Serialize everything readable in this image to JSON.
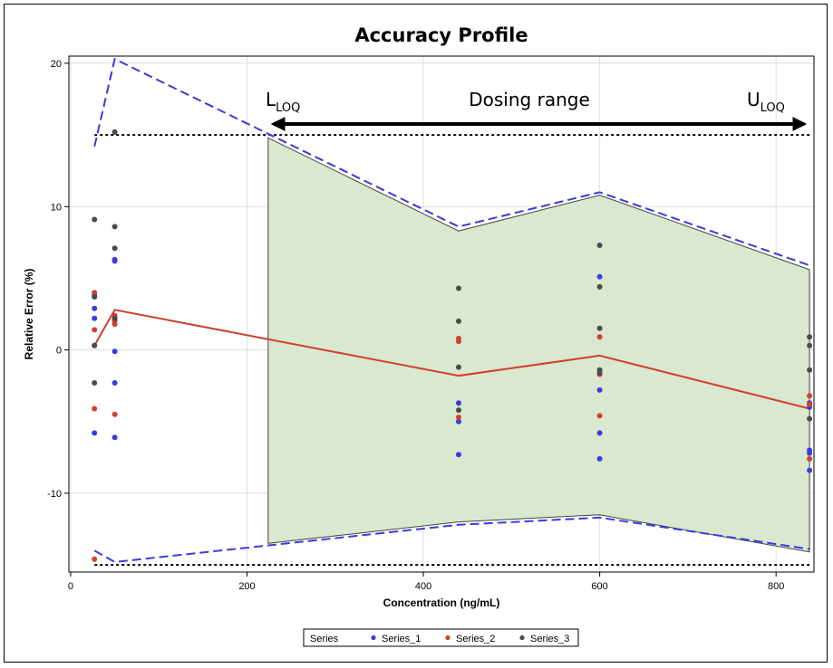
{
  "chart_data": {
    "type": "scatter",
    "title": "Accuracy Profile",
    "xlabel": "Concentration (ng/mL)",
    "ylabel": "Relative Error (%)",
    "xlim": [
      -2,
      843
    ],
    "ylim": [
      -15.5,
      20.5
    ],
    "xticks": [
      0,
      200,
      400,
      600,
      800
    ],
    "yticks": [
      -10,
      0,
      10,
      20
    ],
    "grid": true,
    "legend_title": "Series",
    "legend_position": "bottom",
    "series": [
      {
        "name": "Series_1",
        "color": "#3b3bdc",
        "points": [
          [
            27,
            2.9
          ],
          [
            27,
            2.2
          ],
          [
            27,
            -5.8
          ],
          [
            27,
            3.8
          ],
          [
            50,
            6.3
          ],
          [
            50,
            6.2
          ],
          [
            50,
            -0.1
          ],
          [
            50,
            -2.3
          ],
          [
            50,
            -6.1
          ],
          [
            50,
            2.1
          ],
          [
            440,
            -3.7
          ],
          [
            440,
            -5.0
          ],
          [
            440,
            -7.3
          ],
          [
            600,
            5.1
          ],
          [
            600,
            -2.8
          ],
          [
            600,
            -5.8
          ],
          [
            600,
            -7.6
          ],
          [
            838,
            -7.0
          ],
          [
            838,
            -7.2
          ],
          [
            838,
            -8.4
          ],
          [
            838,
            -3.7
          ],
          [
            838,
            -4.0
          ]
        ]
      },
      {
        "name": "Series_2",
        "color": "#d04030",
        "points": [
          [
            27,
            4.0
          ],
          [
            27,
            1.4
          ],
          [
            27,
            -4.1
          ],
          [
            27,
            -14.6
          ],
          [
            27,
            0.3
          ],
          [
            50,
            2.4
          ],
          [
            50,
            2.0
          ],
          [
            50,
            1.8
          ],
          [
            50,
            -4.5
          ],
          [
            440,
            0.8
          ],
          [
            440,
            0.6
          ],
          [
            440,
            -4.7
          ],
          [
            600,
            0.9
          ],
          [
            600,
            -1.7
          ],
          [
            600,
            -4.6
          ],
          [
            838,
            -3.2
          ],
          [
            838,
            -7.6
          ],
          [
            838,
            -3.8
          ]
        ]
      },
      {
        "name": "Series_3",
        "color": "#4a4a4a",
        "points": [
          [
            27,
            9.1
          ],
          [
            27,
            0.3
          ],
          [
            27,
            -2.3
          ],
          [
            27,
            3.7
          ],
          [
            50,
            15.2
          ],
          [
            50,
            8.6
          ],
          [
            50,
            7.1
          ],
          [
            50,
            2.2
          ],
          [
            440,
            4.3
          ],
          [
            440,
            2.0
          ],
          [
            440,
            -1.2
          ],
          [
            440,
            -4.2
          ],
          [
            600,
            7.3
          ],
          [
            600,
            4.4
          ],
          [
            600,
            1.5
          ],
          [
            600,
            -1.4
          ],
          [
            600,
            -1.6
          ],
          [
            838,
            0.9
          ],
          [
            838,
            0.3
          ],
          [
            838,
            -1.4
          ],
          [
            838,
            -4.8
          ]
        ]
      }
    ],
    "lines": {
      "mean_error": {
        "color": "#d04030",
        "x": [
          27,
          50,
          440,
          600,
          838
        ],
        "y": [
          0.3,
          2.8,
          -1.8,
          -0.4,
          -4.1
        ]
      },
      "upper_tolerance": {
        "color": "#3b3bdc",
        "x": [
          27,
          50,
          440,
          600,
          838
        ],
        "y": [
          14.2,
          20.3,
          8.6,
          11.0,
          5.9
        ]
      },
      "lower_tolerance": {
        "color": "#3b3bdc",
        "x": [
          27,
          50,
          440,
          600,
          838
        ],
        "y": [
          -14.0,
          -14.8,
          -12.2,
          -11.7,
          -13.9
        ]
      },
      "upper_limit": {
        "y": 15,
        "x": [
          27,
          838
        ]
      },
      "lower_limit": {
        "y": -15,
        "x": [
          27,
          838
        ]
      }
    },
    "dosing_band": {
      "color": "#d9e8cf",
      "x": [
        224,
        440,
        600,
        838
      ],
      "upper": [
        14.8,
        8.3,
        10.8,
        5.6
      ],
      "lower": [
        -13.5,
        -12.0,
        -11.5,
        -14.1
      ]
    },
    "annotations": {
      "lloq_main": "L",
      "lloq_sub": "LOQ",
      "range_label": "Dosing range",
      "uloq_main": "U",
      "uloq_sub": "LOQ",
      "arrow_x": [
        224,
        838
      ]
    }
  }
}
